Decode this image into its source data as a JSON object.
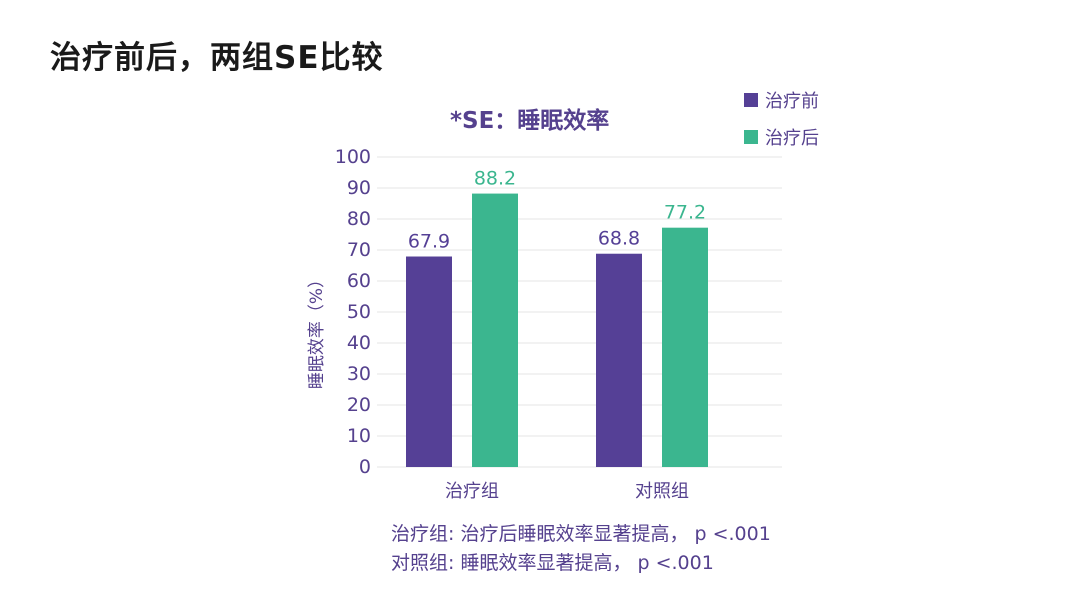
{
  "slide": {
    "title": "治疗前后，两组SE比较"
  },
  "notes": [
    "治疗组: 治疗后睡眠效率显著提高， p <.001",
    "对照组: 睡眠效率显著提高， p <.001"
  ],
  "colors": {
    "pre": "#554096",
    "post": "#3bb68f",
    "text": "#55418e",
    "grid": "#e6e6e6"
  },
  "chart_data": {
    "type": "bar",
    "title": "*SE：睡眠效率",
    "ylabel": "睡眠效率（%）",
    "xlabel": "",
    "categories": [
      "治疗组",
      "对照组"
    ],
    "series": [
      {
        "name": "治疗前",
        "values": [
          67.9,
          68.8
        ]
      },
      {
        "name": "治疗后",
        "values": [
          88.2,
          77.2
        ]
      }
    ],
    "ylim": [
      0,
      100
    ],
    "yticks": [
      0,
      10,
      20,
      30,
      40,
      50,
      60,
      70,
      80,
      90,
      100
    ],
    "grid": true,
    "legend": "top-right"
  }
}
